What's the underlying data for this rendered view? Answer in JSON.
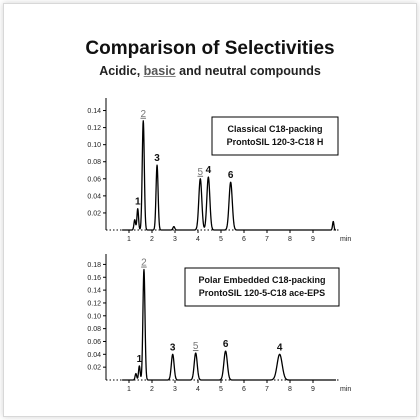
{
  "figure": {
    "title": "Comparison of Selectivities",
    "subtitle_part1": "Acidic, ",
    "subtitle_basic": "basic",
    "subtitle_part2": " and neutral compounds",
    "colors": {
      "trace": "#000000",
      "peak_label_grey": "#777777",
      "text": "#111111"
    }
  },
  "chart_data": [
    {
      "type": "line",
      "kind": "chromatogram",
      "legend_lines": [
        "Classical C18-packing",
        "ProntoSIL 120-3-C18 H"
      ],
      "xlabel": "min",
      "x_ticks": [
        1,
        2,
        3,
        4,
        5,
        6,
        7,
        8,
        9
      ],
      "y_ticks": [
        "0.02",
        "0.04",
        "0.06",
        "0.08",
        "0.10",
        "0.12",
        "0.14"
      ],
      "xlim": [
        0,
        10
      ],
      "ylim": [
        0,
        0.15
      ],
      "baseline": 0.0,
      "peaks": [
        {
          "label": "",
          "x": 1.25,
          "y": 0.012,
          "width": 0.035
        },
        {
          "label": "1",
          "x": 1.38,
          "y": 0.025,
          "width": 0.035
        },
        {
          "label": "2",
          "x": 1.62,
          "y": 0.128,
          "width": 0.045
        },
        {
          "label": "3",
          "x": 2.22,
          "y": 0.076,
          "width": 0.045
        },
        {
          "label": "",
          "x": 2.95,
          "y": 0.004,
          "width": 0.04
        },
        {
          "label": "5",
          "x": 4.1,
          "y": 0.06,
          "width": 0.065
        },
        {
          "label": "4",
          "x": 4.45,
          "y": 0.062,
          "width": 0.065
        },
        {
          "label": "6",
          "x": 5.42,
          "y": 0.056,
          "width": 0.07
        },
        {
          "label": "",
          "x": 9.88,
          "y": 0.01,
          "width": 0.03
        }
      ],
      "grey_labels": [
        "2",
        "5"
      ]
    },
    {
      "type": "line",
      "kind": "chromatogram",
      "legend_lines": [
        "Polar Embedded C18-packing",
        "ProntoSIL 120-5-C18 ace-EPS"
      ],
      "xlabel": "min",
      "x_ticks": [
        1,
        2,
        3,
        4,
        5,
        6,
        7,
        8,
        9
      ],
      "y_ticks": [
        "0.02",
        "0.04",
        "0.06",
        "0.08",
        "0.10",
        "0.12",
        "0.14",
        "0.16",
        "0.18"
      ],
      "xlim": [
        0,
        10
      ],
      "ylim": [
        0,
        0.19
      ],
      "baseline": 0.0,
      "peaks": [
        {
          "label": "",
          "x": 1.3,
          "y": 0.01,
          "width": 0.035
        },
        {
          "label": "1",
          "x": 1.45,
          "y": 0.022,
          "width": 0.035
        },
        {
          "label": "2",
          "x": 1.65,
          "y": 0.172,
          "width": 0.045
        },
        {
          "label": "3",
          "x": 2.9,
          "y": 0.04,
          "width": 0.06
        },
        {
          "label": "5",
          "x": 3.9,
          "y": 0.042,
          "width": 0.065
        },
        {
          "label": "6",
          "x": 5.2,
          "y": 0.045,
          "width": 0.075
        },
        {
          "label": "4",
          "x": 7.55,
          "y": 0.04,
          "width": 0.11
        }
      ],
      "grey_labels": [
        "2",
        "5"
      ]
    }
  ]
}
